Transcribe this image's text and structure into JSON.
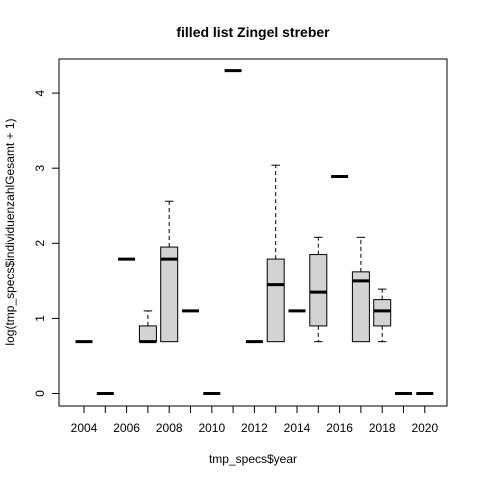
{
  "chart_data": {
    "type": "box",
    "title": "filled list Zingel streber",
    "xlabel": "tmp_specs$year",
    "ylabel": "log(tmp_specs$individuenzahlGesamt + 1)",
    "ylim": [
      -0.2,
      4.45
    ],
    "yticks": [
      "0",
      "1",
      "2",
      "3",
      "4"
    ],
    "x_tick_labels": [
      "2004",
      "2006",
      "2008",
      "2010",
      "2012",
      "2014",
      "2016",
      "2018",
      "2020"
    ],
    "box_fill": "#d3d3d3",
    "categories": [
      "2004",
      "2005",
      "2006",
      "2007",
      "2008",
      "2009",
      "2010",
      "2011",
      "2012",
      "2013",
      "2014",
      "2015",
      "2016",
      "2017",
      "2018",
      "2019",
      "2020"
    ],
    "boxes": [
      {
        "year": "2004",
        "min": 0.69,
        "q1": 0.69,
        "median": 0.69,
        "q3": 0.69,
        "max": 0.69
      },
      {
        "year": "2005",
        "min": 0.0,
        "q1": 0.0,
        "median": 0.0,
        "q3": 0.0,
        "max": 0.0
      },
      {
        "year": "2006",
        "min": 1.79,
        "q1": 1.79,
        "median": 1.79,
        "q3": 1.79,
        "max": 1.79
      },
      {
        "year": "2007",
        "min": 0.69,
        "q1": 0.69,
        "median": 0.69,
        "q3": 0.9,
        "max": 1.1
      },
      {
        "year": "2008",
        "min": 0.69,
        "q1": 0.69,
        "median": 1.79,
        "q3": 1.95,
        "max": 2.56
      },
      {
        "year": "2009",
        "min": 1.1,
        "q1": 1.1,
        "median": 1.1,
        "q3": 1.1,
        "max": 1.1
      },
      {
        "year": "2010",
        "min": 0.0,
        "q1": 0.0,
        "median": 0.0,
        "q3": 0.0,
        "max": 0.0
      },
      {
        "year": "2011",
        "min": 4.3,
        "q1": 4.3,
        "median": 4.3,
        "q3": 4.3,
        "max": 4.3
      },
      {
        "year": "2012",
        "min": 0.69,
        "q1": 0.69,
        "median": 0.69,
        "q3": 0.69,
        "max": 0.69
      },
      {
        "year": "2013",
        "min": 0.69,
        "q1": 0.69,
        "median": 1.45,
        "q3": 1.79,
        "max": 3.04
      },
      {
        "year": "2014",
        "min": 1.1,
        "q1": 1.1,
        "median": 1.1,
        "q3": 1.1,
        "max": 1.1
      },
      {
        "year": "2015",
        "min": 0.69,
        "q1": 0.9,
        "median": 1.35,
        "q3": 1.85,
        "max": 2.08
      },
      {
        "year": "2016",
        "min": 2.89,
        "q1": 2.89,
        "median": 2.89,
        "q3": 2.89,
        "max": 2.89
      },
      {
        "year": "2017",
        "min": 0.69,
        "q1": 0.69,
        "median": 1.5,
        "q3": 1.62,
        "max": 2.08
      },
      {
        "year": "2018",
        "min": 0.69,
        "q1": 0.9,
        "median": 1.1,
        "q3": 1.25,
        "max": 1.39
      },
      {
        "year": "2019",
        "min": 0.0,
        "q1": 0.0,
        "median": 0.0,
        "q3": 0.0,
        "max": 0.0
      },
      {
        "year": "2020",
        "min": 0.0,
        "q1": 0.0,
        "median": 0.0,
        "q3": 0.0,
        "max": 0.0
      }
    ]
  }
}
